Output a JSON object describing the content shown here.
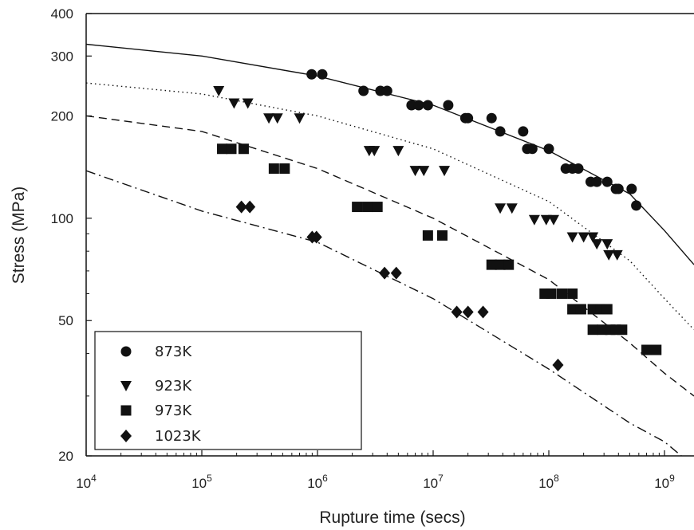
{
  "chart_data": {
    "type": "scatter",
    "xlabel": "Rupture time (secs)",
    "ylabel": "Stress (MPa)",
    "x_scale": "log",
    "y_scale": "log",
    "xlim": [
      10000,
      1800000000
    ],
    "ylim": [
      20,
      400
    ],
    "x_ticks": [
      {
        "value": 10000,
        "base": "10",
        "exp": "4"
      },
      {
        "value": 100000,
        "base": "10",
        "exp": "5"
      },
      {
        "value": 1000000,
        "base": "10",
        "exp": "6"
      },
      {
        "value": 10000000,
        "base": "10",
        "exp": "7"
      },
      {
        "value": 100000000,
        "base": "10",
        "exp": "8"
      },
      {
        "value": 1000000000,
        "base": "10",
        "exp": "9"
      }
    ],
    "y_ticks": [
      {
        "value": 20,
        "label": "20"
      },
      {
        "value": 50,
        "label": "50"
      },
      {
        "value": 100,
        "label": "100"
      },
      {
        "value": 200,
        "label": "200"
      },
      {
        "value": 300,
        "label": "300"
      },
      {
        "value": 400,
        "label": "400"
      }
    ],
    "grid": false,
    "legend_position": "bottom-left",
    "series": [
      {
        "name": "873K",
        "marker": "circle",
        "line_style": "solid",
        "points": [
          [
            890000,
            265
          ],
          [
            1100000,
            265
          ],
          [
            2500000,
            237
          ],
          [
            3500000,
            237
          ],
          [
            4000000,
            237
          ],
          [
            6500000,
            215
          ],
          [
            7500000,
            215
          ],
          [
            9000000,
            215
          ],
          [
            13500000,
            215
          ],
          [
            19000000,
            197
          ],
          [
            20000000,
            197
          ],
          [
            32000000,
            197
          ],
          [
            38000000,
            180
          ],
          [
            60000000,
            180
          ],
          [
            65000000,
            160
          ],
          [
            72000000,
            160
          ],
          [
            100000000,
            160
          ],
          [
            140000000,
            140
          ],
          [
            160000000,
            140
          ],
          [
            180000000,
            140
          ],
          [
            230000000,
            128
          ],
          [
            260000000,
            128
          ],
          [
            320000000,
            128
          ],
          [
            380000000,
            122
          ],
          [
            400000000,
            122
          ],
          [
            520000000,
            122
          ],
          [
            570000000,
            109
          ]
        ],
        "curve": [
          [
            10000,
            325
          ],
          [
            100000,
            300
          ],
          [
            1000000,
            262
          ],
          [
            10000000,
            215
          ],
          [
            100000000,
            158
          ],
          [
            500000000,
            118
          ],
          [
            1000000000,
            92
          ],
          [
            1800000000,
            73
          ]
        ]
      },
      {
        "name": "923K",
        "marker": "triangle-down",
        "line_style": "dotted",
        "points": [
          [
            140000,
            237
          ],
          [
            190000,
            218
          ],
          [
            250000,
            218
          ],
          [
            380000,
            197
          ],
          [
            450000,
            197
          ],
          [
            700000,
            197
          ],
          [
            2800000,
            158
          ],
          [
            3100000,
            158
          ],
          [
            5000000,
            158
          ],
          [
            7000000,
            138
          ],
          [
            8300000,
            138
          ],
          [
            12500000,
            138
          ],
          [
            38000000,
            107
          ],
          [
            48000000,
            107
          ],
          [
            75000000,
            99
          ],
          [
            95000000,
            99
          ],
          [
            110000000,
            99
          ],
          [
            160000000,
            88
          ],
          [
            200000000,
            88
          ],
          [
            240000000,
            88
          ],
          [
            260000000,
            84
          ],
          [
            320000000,
            84
          ],
          [
            330000000,
            78
          ],
          [
            390000000,
            78
          ]
        ],
        "curve": [
          [
            10000,
            250
          ],
          [
            100000,
            232
          ],
          [
            1000000,
            200
          ],
          [
            10000000,
            160
          ],
          [
            100000000,
            112
          ],
          [
            500000000,
            75
          ],
          [
            1000000000,
            58
          ],
          [
            1800000000,
            47
          ]
        ]
      },
      {
        "name": "973K",
        "marker": "square",
        "line_style": "dashed",
        "points": [
          [
            150000,
            160
          ],
          [
            180000,
            160
          ],
          [
            230000,
            160
          ],
          [
            420000,
            140
          ],
          [
            520000,
            140
          ],
          [
            2200000,
            108
          ],
          [
            2700000,
            108
          ],
          [
            3300000,
            108
          ],
          [
            9000000,
            89
          ],
          [
            12000000,
            89
          ],
          [
            32000000,
            73
          ],
          [
            38000000,
            73
          ],
          [
            45000000,
            73
          ],
          [
            92000000,
            60
          ],
          [
            105000000,
            60
          ],
          [
            130000000,
            60
          ],
          [
            160000000,
            60
          ],
          [
            160000000,
            54
          ],
          [
            190000000,
            54
          ],
          [
            240000000,
            54
          ],
          [
            280000000,
            54
          ],
          [
            320000000,
            54
          ],
          [
            240000000,
            47
          ],
          [
            290000000,
            47
          ],
          [
            340000000,
            47
          ],
          [
            380000000,
            47
          ],
          [
            430000000,
            47
          ],
          [
            700000000,
            41
          ],
          [
            850000000,
            41
          ]
        ],
        "curve": [
          [
            10000,
            200
          ],
          [
            100000,
            180
          ],
          [
            1000000,
            140
          ],
          [
            10000000,
            100
          ],
          [
            100000000,
            66
          ],
          [
            500000000,
            43
          ],
          [
            1000000000,
            35
          ],
          [
            1800000000,
            30
          ]
        ]
      },
      {
        "name": "1023K",
        "marker": "diamond",
        "line_style": "dash-dot",
        "points": [
          [
            220000,
            108
          ],
          [
            260000,
            108
          ],
          [
            900000,
            88
          ],
          [
            980000,
            88
          ],
          [
            3800000,
            69
          ],
          [
            4800000,
            69
          ],
          [
            16000000,
            53
          ],
          [
            20000000,
            53
          ],
          [
            27000000,
            53
          ],
          [
            120000000,
            37
          ]
        ],
        "curve": [
          [
            10000,
            138
          ],
          [
            100000,
            105
          ],
          [
            1000000,
            85
          ],
          [
            10000000,
            58
          ],
          [
            100000000,
            36
          ],
          [
            500000000,
            25
          ],
          [
            1000000000,
            22
          ],
          [
            1400000000,
            20
          ]
        ]
      }
    ]
  }
}
